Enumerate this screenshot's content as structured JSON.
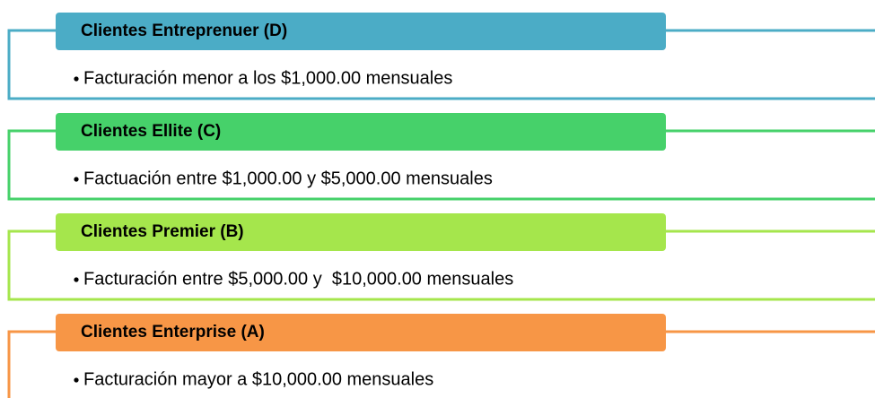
{
  "items": [
    {
      "title": "Clientes Entreprenuer (D)",
      "text": "Facturación menor a los $1,000.00 mensuales",
      "color": "#4bacc6"
    },
    {
      "title": "Clientes Ellite (C)",
      "text": "Factuación entre $1,000.00 y $5,000.00 mensuales",
      "color": "#46d16a"
    },
    {
      "title": "Clientes Premier (B)",
      "text": "Facturación entre $5,000.00 y  $10,000.00 mensuales",
      "color": "#a5e64c"
    },
    {
      "title": "Clientes Enterprise (A)",
      "text": "Facturación mayor a $10,000.00 mensuales",
      "color": "#f79646"
    }
  ]
}
